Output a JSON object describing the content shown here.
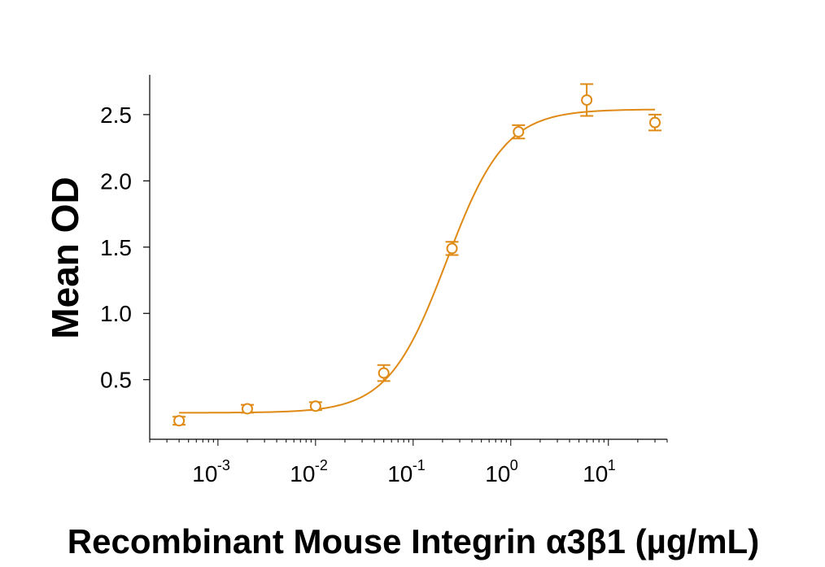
{
  "chart_data": {
    "type": "scatter",
    "title": "",
    "xlabel": "Recombinant Mouse Integrin α3β1 (µg/mL)",
    "ylabel": "Mean OD",
    "xscale": "log",
    "xlim": [
      0.0002,
      40
    ],
    "ylim": [
      0.05,
      2.8
    ],
    "yticks": [
      0.5,
      1.0,
      1.5,
      2.0,
      2.5
    ],
    "ytick_labels": [
      "0.5",
      "1.0",
      "1.5",
      "2.0",
      "2.5"
    ],
    "xticks": [
      0.001,
      0.01,
      0.1,
      1,
      10
    ],
    "xtick_labels": [
      {
        "base": "10",
        "exp": "-3"
      },
      {
        "base": "10",
        "exp": "-2"
      },
      {
        "base": "10",
        "exp": "-1"
      },
      {
        "base": "10",
        "exp": "0"
      },
      {
        "base": "10",
        "exp": "1"
      }
    ],
    "grid": false,
    "color": "#E08A16",
    "series": [
      {
        "points": [
          {
            "x": 0.0004,
            "y": 0.19,
            "err": 0.03
          },
          {
            "x": 0.002,
            "y": 0.28,
            "err": 0.03
          },
          {
            "x": 0.01,
            "y": 0.3,
            "err": 0.03
          },
          {
            "x": 0.05,
            "y": 0.55,
            "err": 0.06
          },
          {
            "x": 0.25,
            "y": 1.49,
            "err": 0.05
          },
          {
            "x": 1.2,
            "y": 2.37,
            "err": 0.05
          },
          {
            "x": 6,
            "y": 2.61,
            "err": 0.12
          },
          {
            "x": 30,
            "y": 2.44,
            "err": 0.06
          }
        ],
        "fit": {
          "model": "4PL",
          "bottom": 0.25,
          "top": 2.54,
          "ec50": 0.22,
          "hill": 1.45
        }
      }
    ]
  }
}
